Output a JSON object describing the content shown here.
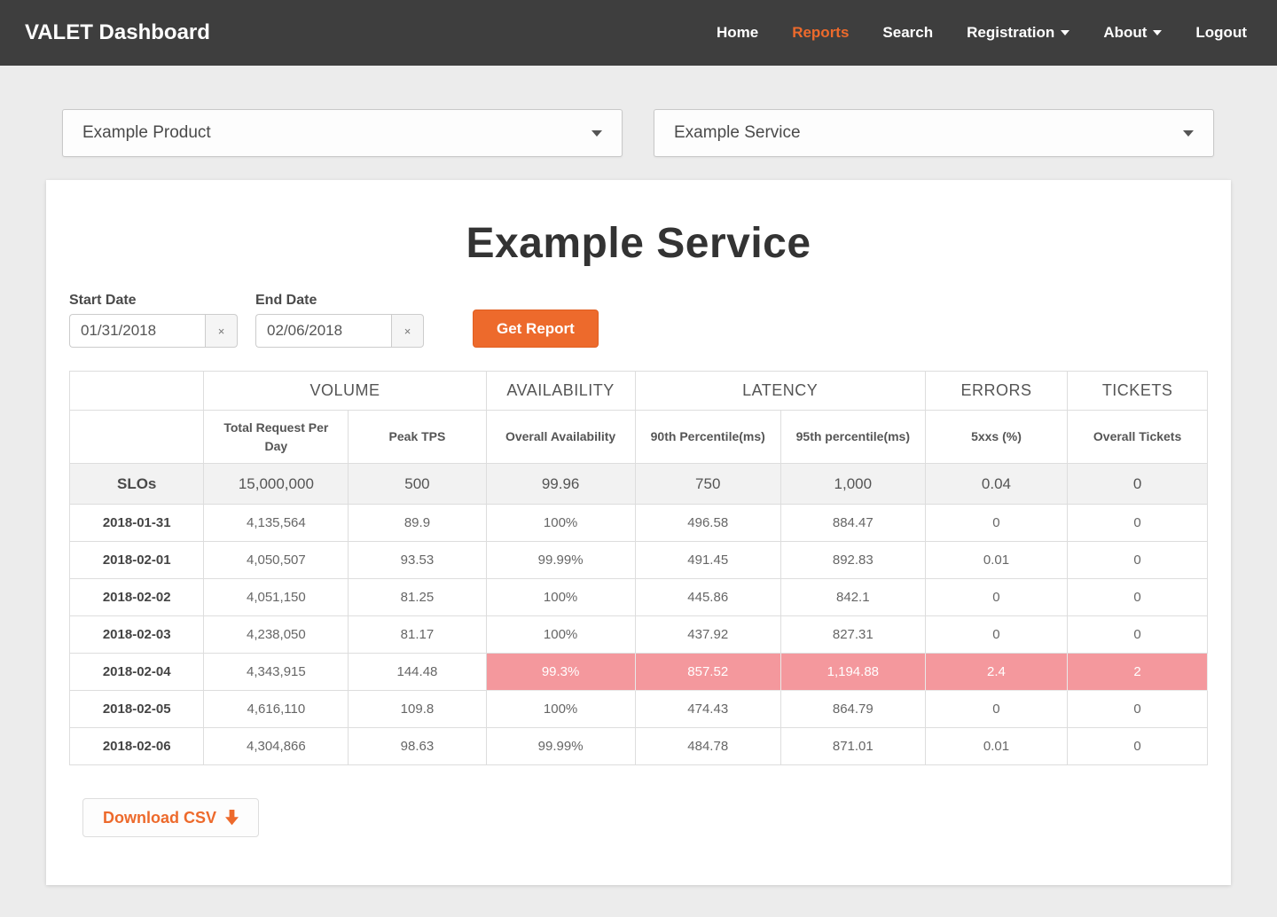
{
  "brand": "VALET Dashboard",
  "nav": {
    "items": [
      {
        "label": "Home",
        "active": false,
        "caret": false,
        "name": "nav-item-home"
      },
      {
        "label": "Reports",
        "active": true,
        "caret": false,
        "name": "nav-item-reports"
      },
      {
        "label": "Search",
        "active": false,
        "caret": false,
        "name": "nav-item-search"
      },
      {
        "label": "Registration",
        "active": false,
        "caret": true,
        "name": "nav-item-registration"
      },
      {
        "label": "About",
        "active": false,
        "caret": true,
        "name": "nav-item-about"
      },
      {
        "label": "Logout",
        "active": false,
        "caret": false,
        "name": "nav-item-logout"
      }
    ]
  },
  "filters": {
    "product_selected": "Example Product",
    "service_selected": "Example Service"
  },
  "report": {
    "title": "Example Service",
    "start_date": {
      "label": "Start Date",
      "value": "01/31/2018",
      "clear_glyph": "×"
    },
    "end_date": {
      "label": "End Date",
      "value": "02/06/2018",
      "clear_glyph": "×"
    },
    "get_report_label": "Get Report",
    "download_csv_label": "Download CSV"
  },
  "table": {
    "column_widths_pct": [
      11.8,
      12.7,
      12.1,
      13.1,
      12.8,
      12.7,
      12.5,
      12.3
    ],
    "groups": [
      {
        "label": "",
        "span": 1
      },
      {
        "label": "VOLUME",
        "span": 2
      },
      {
        "label": "AVAILABILITY",
        "span": 1
      },
      {
        "label": "LATENCY",
        "span": 2
      },
      {
        "label": "ERRORS",
        "span": 1
      },
      {
        "label": "TICKETS",
        "span": 1
      }
    ],
    "sub_columns": [
      "",
      "Total Request Per Day",
      "Peak TPS",
      "Overall Availability",
      "90th Percentile(ms)",
      "95th percentile(ms)",
      "5xxs (%)",
      "Overall Tickets"
    ],
    "slo_row": {
      "label": "SLOs",
      "values": [
        "15,000,000",
        "500",
        "99.96",
        "750",
        "1,000",
        "0.04",
        "0"
      ]
    },
    "rows": [
      {
        "date": "2018-01-31",
        "values": [
          "4,135,564",
          "89.9",
          "100%",
          "496.58",
          "884.47",
          "0",
          "0"
        ],
        "highlight": []
      },
      {
        "date": "2018-02-01",
        "values": [
          "4,050,507",
          "93.53",
          "99.99%",
          "491.45",
          "892.83",
          "0.01",
          "0"
        ],
        "highlight": []
      },
      {
        "date": "2018-02-02",
        "values": [
          "4,051,150",
          "81.25",
          "100%",
          "445.86",
          "842.1",
          "0",
          "0"
        ],
        "highlight": []
      },
      {
        "date": "2018-02-03",
        "values": [
          "4,238,050",
          "81.17",
          "100%",
          "437.92",
          "827.31",
          "0",
          "0"
        ],
        "highlight": []
      },
      {
        "date": "2018-02-04",
        "values": [
          "4,343,915",
          "144.48",
          "99.3%",
          "857.52",
          "1,194.88",
          "2.4",
          "2"
        ],
        "highlight": [
          2,
          3,
          4,
          5,
          6
        ]
      },
      {
        "date": "2018-02-05",
        "values": [
          "4,616,110",
          "109.8",
          "100%",
          "474.43",
          "864.79",
          "0",
          "0"
        ],
        "highlight": []
      },
      {
        "date": "2018-02-06",
        "values": [
          "4,304,866",
          "98.63",
          "99.99%",
          "484.78",
          "871.01",
          "0.01",
          "0"
        ],
        "highlight": []
      }
    ]
  },
  "colors": {
    "accent_orange": "#ed6a2c",
    "breach_pink": "#f4989d",
    "navbar_bg": "#3e3e3e",
    "page_bg": "#ececec"
  }
}
